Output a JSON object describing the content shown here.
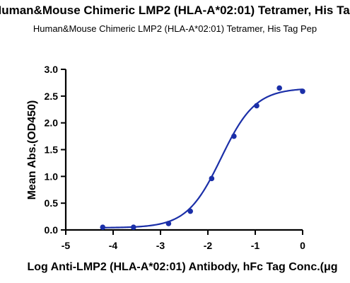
{
  "chart_data": {
    "type": "scatter",
    "title": "Human&Mouse Chimeric LMP2 (HLA-A*02:01) Tetramer, His Tag",
    "subtitle": "Human&Mouse Chimeric LMP2 (HLA-A*02:01) Tetramer, His Tag Pep",
    "xlabel": "Log Anti-LMP2 (HLA-A*02:01) Antibody, hFc Tag Conc.(μg",
    "ylabel": "Mean Abs.(OD450)",
    "xlim": [
      -5,
      0
    ],
    "ylim": [
      0,
      3.0
    ],
    "xticks": [
      "-5",
      "-4",
      "-3",
      "-2",
      "-1",
      "0"
    ],
    "yticks": [
      "0.0",
      "0.5",
      "1.0",
      "1.5",
      "2.0",
      "2.5",
      "3.0"
    ],
    "grid": false,
    "colors": {
      "series": "#1b2fa8",
      "axis": "#000000"
    },
    "series": [
      {
        "name": "",
        "points": [
          {
            "x": -4.22,
            "y": 0.05
          },
          {
            "x": -3.57,
            "y": 0.05
          },
          {
            "x": -2.83,
            "y": 0.12
          },
          {
            "x": -2.37,
            "y": 0.35
          },
          {
            "x": -1.92,
            "y": 0.96
          },
          {
            "x": -1.45,
            "y": 1.75
          },
          {
            "x": -0.97,
            "y": 2.32
          },
          {
            "x": -0.49,
            "y": 2.65
          },
          {
            "x": 0.0,
            "y": 2.59
          }
        ],
        "fit": {
          "model": "4PL",
          "bottom": 0.04,
          "top": 2.65,
          "log_ec50": -1.72,
          "hill_slope": 1.2
        }
      }
    ]
  }
}
